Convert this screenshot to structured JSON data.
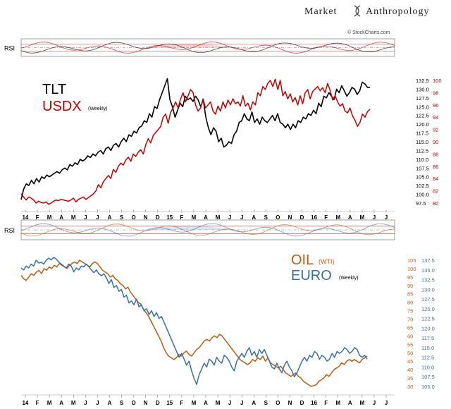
{
  "header": {
    "brand_left": "Market",
    "brand_right": "Anthropology",
    "source": "© StockCharts.com"
  },
  "chart_data": [
    {
      "type": "line",
      "panel": "top",
      "rsi_label": "RSI",
      "series_labels": {
        "primary": "TLT",
        "secondary": "USDX",
        "secondary_note": "(Weekly)"
      },
      "colors": {
        "primary": "#000000",
        "secondary": "#c00000"
      },
      "left_axis_ticks": [
        "132.5",
        "130.0",
        "127.5",
        "125.0",
        "122.5",
        "120.0",
        "117.5",
        "115.0",
        "112.5",
        "110.0",
        "107.5",
        "105.0",
        "102.5",
        "100.0",
        "97.5"
      ],
      "right_axis_ticks": [
        "100",
        "98",
        "96",
        "94",
        "92",
        "90",
        "88",
        "86",
        "84",
        "82",
        "80"
      ],
      "left_ylim": [
        97.5,
        132.5
      ],
      "right_ylim": [
        80,
        100
      ],
      "x_ticks": [
        "14",
        "F",
        "M",
        "A",
        "M",
        "J",
        "J",
        "A",
        "S",
        "O",
        "N",
        "D",
        "15",
        "F",
        "M",
        "A",
        "M",
        "J",
        "J",
        "A",
        "S",
        "O",
        "N",
        "D",
        "16",
        "F",
        "M",
        "A",
        "M",
        "J",
        "J"
      ],
      "series": [
        {
          "name": "TLT",
          "axis": "left",
          "values": [
            98.5,
            101.5,
            103,
            102.5,
            104,
            103,
            104.5,
            103.5,
            105,
            104.5,
            105.5,
            105,
            105.5,
            106,
            106.5,
            106,
            107,
            107.5,
            107,
            108.5,
            108,
            109,
            108.5,
            110,
            109.5,
            110,
            111,
            110.5,
            111.5,
            111,
            112,
            112.5,
            111.5,
            113,
            113.5,
            112.5,
            114,
            114.5,
            113.5,
            115,
            116,
            115,
            117,
            116.5,
            118,
            117.5,
            119,
            119.5,
            121,
            120.5,
            123,
            122,
            125,
            124.5,
            127,
            129,
            131,
            133,
            127,
            125,
            122,
            124,
            126,
            125,
            128,
            127,
            127.5,
            126.5,
            128,
            127,
            125,
            127,
            122,
            119,
            117,
            119,
            118,
            115,
            116,
            113.5,
            114,
            115,
            114.5,
            117,
            118,
            120.5,
            121,
            123,
            121.5,
            121,
            123.5,
            120.5,
            121.5,
            120,
            122,
            121,
            120.5,
            121.5,
            122.5,
            121,
            123,
            120.5,
            120,
            119,
            120,
            118.5,
            120,
            119,
            121,
            120.5,
            122,
            121.5,
            123,
            122.5,
            124,
            123,
            126,
            125,
            128,
            127.5,
            129,
            128,
            127,
            130,
            129,
            131,
            129.5,
            128,
            129,
            130.5,
            130,
            128.5,
            129.5,
            132,
            131.5,
            130.5,
            130.5
          ]
        },
        {
          "name": "USDX",
          "axis": "right",
          "values": [
            81.5,
            81,
            80.5,
            81,
            80.8,
            80.5,
            80,
            80.3,
            80.1,
            80,
            80.2,
            79.8,
            80,
            80.3,
            80.5,
            80.4,
            80.6,
            80.5,
            80.4,
            80.3,
            80.5,
            80.8,
            80.2,
            80.6,
            80.8,
            81,
            80.6,
            80.9,
            81.2,
            81.5,
            82,
            83,
            82.5,
            83.5,
            84,
            84.5,
            84,
            85.5,
            85,
            86,
            86.5,
            86.2,
            87,
            87.5,
            86.8,
            88,
            87.6,
            88.3,
            88.7,
            88,
            89.5,
            90.5,
            89.8,
            91,
            91.5,
            92,
            92.5,
            94,
            94.5,
            93,
            94.8,
            95.5,
            96.5,
            95.5,
            97,
            98,
            96.5,
            97.5,
            98.5,
            98,
            96,
            95,
            95.5,
            97,
            95.5,
            96,
            96.5,
            95,
            94.5,
            95.8,
            95,
            96.5,
            95.5,
            96.8,
            96,
            97,
            96.2,
            96.5,
            95.8,
            97.5,
            95.8,
            96.3,
            95.2,
            96.5,
            96,
            98,
            97.5,
            99,
            98.5,
            99.5,
            100,
            99,
            100.2,
            98.5,
            100,
            97.5,
            98.2,
            97,
            97.8,
            96.5,
            97.2,
            96,
            97.5,
            96.2,
            98,
            98.5,
            97,
            98.2,
            98.6,
            99,
            98.3,
            98.8,
            98,
            99.5,
            98.4,
            96.8,
            97.5,
            96.5,
            95.8,
            96.2,
            95,
            94.7,
            95.5,
            94.2,
            93.5,
            92.5,
            93.2,
            94.5,
            94,
            94.9,
            95.3
          ]
        }
      ]
    },
    {
      "type": "line",
      "panel": "bottom",
      "rsi_label": "RSI",
      "series_labels": {
        "primary": "OIL",
        "primary_note": "(WTI)",
        "secondary": "EURO",
        "secondary_note": "(Weekly)"
      },
      "colors": {
        "primary": "#b85c14",
        "secondary": "#3a6ea5"
      },
      "left_axis_ticks": [
        "105",
        "100",
        "95",
        "90",
        "85",
        "80",
        "75",
        "70",
        "65",
        "60",
        "55",
        "50",
        "45",
        "40",
        "35",
        "30"
      ],
      "right_axis_ticks": [
        "137.5",
        "135.0",
        "132.5",
        "130.0",
        "127.5",
        "125.0",
        "122.5",
        "120.0",
        "117.5",
        "115.0",
        "112.5",
        "110.0",
        "107.5",
        "105.0"
      ],
      "left_ylim": [
        30,
        105
      ],
      "right_ylim": [
        105,
        137.5
      ],
      "x_ticks": [
        "14",
        "F",
        "M",
        "A",
        "M",
        "J",
        "J",
        "A",
        "S",
        "O",
        "N",
        "D",
        "15",
        "F",
        "M",
        "A",
        "M",
        "J",
        "J",
        "A",
        "S",
        "O",
        "N",
        "D",
        "16",
        "F",
        "M",
        "A",
        "M",
        "J",
        "J"
      ],
      "series": [
        {
          "name": "OIL",
          "axis": "left",
          "values": [
            96,
            94,
            93,
            95,
            97,
            96,
            98,
            99,
            97,
            100,
            99,
            101,
            100,
            102,
            101,
            103,
            102,
            101,
            100,
            102,
            103,
            104,
            103,
            105,
            104,
            103,
            102,
            101,
            103,
            104,
            103,
            101,
            99,
            98,
            97,
            95,
            96,
            94,
            93,
            91,
            90,
            88,
            89,
            86,
            84,
            82,
            80,
            79,
            76,
            74,
            72,
            69,
            66,
            63,
            60,
            57,
            53,
            50,
            48,
            47,
            46,
            47,
            49,
            48,
            50,
            51,
            49,
            48,
            50,
            52,
            53,
            55,
            57,
            58,
            57,
            59,
            60,
            59,
            61,
            60,
            58,
            56,
            54,
            52,
            50,
            48,
            46,
            45,
            44,
            43,
            44,
            46,
            45,
            47,
            46,
            48,
            45,
            47,
            44,
            43,
            42,
            41,
            42,
            40,
            38,
            37,
            36,
            37,
            38,
            36,
            35,
            33,
            32,
            31,
            30,
            30.5,
            31,
            33,
            34,
            35,
            37,
            36,
            38,
            40,
            41,
            42,
            44,
            43,
            45,
            46,
            45,
            46,
            45,
            44,
            46,
            47,
            48
          ]
        },
        {
          "name": "EURO",
          "axis": "right",
          "values": [
            135.5,
            135,
            136,
            135.5,
            136.5,
            136,
            137.5,
            136.8,
            137,
            136.5,
            137.5,
            138,
            137.6,
            138.2,
            137.8,
            137,
            136.5,
            136,
            135.5,
            136.5,
            136,
            134.5,
            135.5,
            135,
            136,
            135.8,
            136.5,
            135.8,
            135,
            134.3,
            135,
            134,
            133.5,
            134,
            133,
            131.5,
            132.5,
            130.5,
            131,
            129.5,
            130,
            128,
            128.5,
            126.5,
            127,
            126,
            127.5,
            125.5,
            126,
            124.5,
            125,
            123.5,
            124.5,
            123,
            124,
            122.5,
            123,
            121.5,
            120,
            118.5,
            117,
            115.5,
            114,
            112.5,
            113.5,
            112,
            110.5,
            111.5,
            109,
            107,
            105.5,
            108,
            109.5,
            111,
            110,
            112,
            111.5,
            110.5,
            112.5,
            111.5,
            111,
            113,
            112.5,
            111.5,
            110,
            109,
            111.5,
            112.5,
            113.5,
            112.5,
            114,
            115,
            113,
            114,
            112.5,
            114.5,
            113.5,
            114.5,
            113,
            111.5,
            110,
            109.5,
            111,
            109.5,
            108.5,
            110.5,
            111.5,
            110,
            109,
            107.5,
            108.5,
            110,
            111.5,
            112.5,
            111.5,
            113,
            112.5,
            114,
            113.5,
            112,
            113,
            112.5,
            111.5,
            112,
            113.5,
            112.5,
            114,
            113.5,
            114,
            115,
            114.5,
            113.5,
            114,
            115,
            114.5,
            113,
            112.5,
            113,
            112
          ]
        }
      ]
    }
  ]
}
